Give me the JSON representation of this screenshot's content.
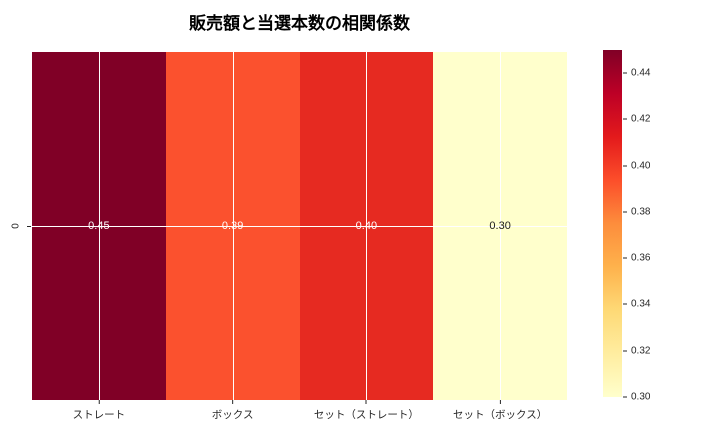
{
  "chart_data": {
    "type": "heatmap",
    "title": "販売額と当選本数の相関係数",
    "categories": [
      "ストレート",
      "ボックス",
      "セット（ストレート）",
      "セット（ボックス）"
    ],
    "rows": [
      "0"
    ],
    "values": [
      [
        0.45,
        0.39,
        0.4,
        0.3
      ]
    ],
    "value_labels": [
      "0.45",
      "0.39",
      "0.40",
      "0.30"
    ],
    "cell_colors": [
      "#800026",
      "#fb512e",
      "#e62a21",
      "#ffffcc"
    ],
    "value_text_colors": [
      "#ffffff",
      "#ffffff",
      "#ffffff",
      "#1a1a1a"
    ],
    "colormap": "YlOrRd",
    "grid": true,
    "grid_color": "#ffffff",
    "y_tick_label": "0",
    "colorbar": {
      "position": "right",
      "range": [
        0.3,
        0.45
      ],
      "ticks": [
        {
          "value": 0.44,
          "label": "0.44"
        },
        {
          "value": 0.42,
          "label": "0.42"
        },
        {
          "value": 0.4,
          "label": "0.40"
        },
        {
          "value": 0.38,
          "label": "0.38"
        },
        {
          "value": 0.36,
          "label": "0.36"
        },
        {
          "value": 0.34,
          "label": "0.34"
        },
        {
          "value": 0.32,
          "label": "0.32"
        },
        {
          "value": 0.3,
          "label": "0.30"
        }
      ],
      "gradient_top_to_bottom": [
        "#800026",
        "#bd0026",
        "#e31a1c",
        "#fc4e2a",
        "#fd8d3c",
        "#feb24c",
        "#fed976",
        "#ffeda0",
        "#ffffcc"
      ]
    }
  }
}
